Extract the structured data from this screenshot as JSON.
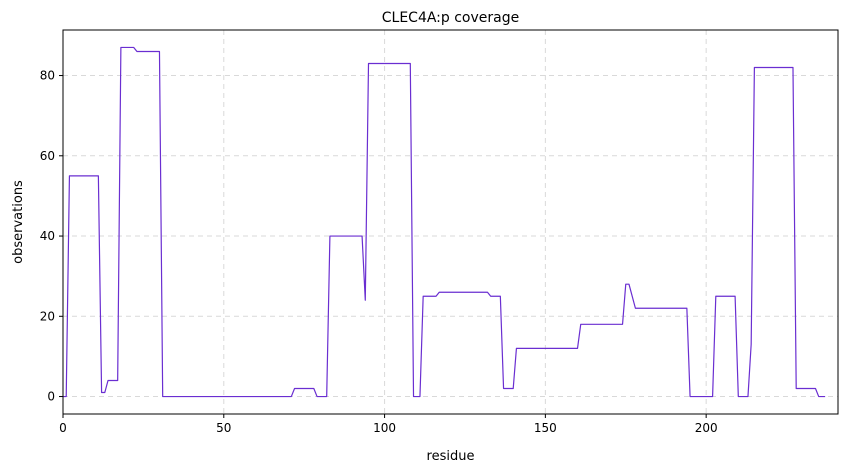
{
  "chart_data": {
    "type": "line",
    "title": "CLEC4A:p coverage",
    "xlabel": "residue",
    "ylabel": "observations",
    "xlim": [
      0,
      241
    ],
    "ylim": [
      -4.35,
      91.35
    ],
    "xticks": [
      0,
      50,
      100,
      150,
      200
    ],
    "yticks": [
      0,
      20,
      40,
      60,
      80
    ],
    "grid": true,
    "line_color": "#6a2ed1",
    "series": [
      {
        "x": [
          0,
          1,
          2,
          11,
          12,
          13,
          14,
          17,
          18,
          22,
          23,
          30,
          31,
          71,
          72,
          78,
          79,
          82,
          83,
          93,
          94,
          95,
          108,
          109,
          111,
          112,
          116,
          117,
          132,
          133,
          136,
          137,
          140,
          141,
          160,
          161,
          174,
          175,
          176,
          178,
          194,
          195,
          202,
          203,
          209,
          210,
          213,
          214,
          215,
          227,
          228,
          234,
          235,
          237
        ],
        "y": [
          0,
          0,
          55,
          55,
          1,
          1,
          4,
          4,
          87,
          87,
          86,
          86,
          0,
          0,
          2,
          2,
          0,
          0,
          40,
          40,
          24,
          83,
          83,
          0,
          0,
          25,
          25,
          26,
          26,
          25,
          25,
          2,
          2,
          12,
          12,
          18,
          18,
          28,
          28,
          22,
          22,
          0,
          0,
          25,
          25,
          0,
          0,
          13,
          82,
          82,
          2,
          2,
          0,
          0
        ]
      }
    ]
  }
}
